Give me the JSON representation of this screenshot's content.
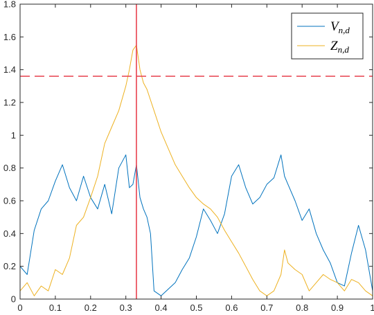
{
  "chart_data": {
    "type": "line",
    "xlim": [
      0,
      1
    ],
    "ylim": [
      0,
      1.8
    ],
    "xticks": [
      "0",
      "0.1",
      "0.2",
      "0.3",
      "0.4",
      "0.5",
      "0.6",
      "0.7",
      "0.8",
      "0.9",
      "1"
    ],
    "yticks": [
      "0",
      "0.2",
      "0.4",
      "0.6",
      "0.8",
      "1",
      "1.2",
      "1.4",
      "1.6",
      "1.8"
    ],
    "legend_position": "top-right",
    "grid": false,
    "series": [
      {
        "name": "V_{n,d}",
        "legend_main": "V",
        "legend_sub": "n,d",
        "color": "#0072BD",
        "x": [
          0,
          0.02,
          0.04,
          0.06,
          0.08,
          0.1,
          0.12,
          0.14,
          0.16,
          0.18,
          0.2,
          0.22,
          0.24,
          0.26,
          0.28,
          0.3,
          0.31,
          0.32,
          0.33,
          0.34,
          0.35,
          0.36,
          0.37,
          0.38,
          0.4,
          0.42,
          0.44,
          0.46,
          0.48,
          0.5,
          0.52,
          0.54,
          0.56,
          0.58,
          0.6,
          0.62,
          0.64,
          0.66,
          0.68,
          0.7,
          0.72,
          0.74,
          0.75,
          0.76,
          0.78,
          0.8,
          0.82,
          0.84,
          0.86,
          0.88,
          0.9,
          0.92,
          0.94,
          0.96,
          0.98,
          1.0
        ],
        "y": [
          0.2,
          0.15,
          0.42,
          0.55,
          0.6,
          0.72,
          0.82,
          0.68,
          0.6,
          0.75,
          0.62,
          0.55,
          0.7,
          0.52,
          0.8,
          0.88,
          0.68,
          0.7,
          0.82,
          0.62,
          0.55,
          0.5,
          0.4,
          0.05,
          0.02,
          0.06,
          0.1,
          0.18,
          0.25,
          0.38,
          0.55,
          0.48,
          0.4,
          0.52,
          0.75,
          0.82,
          0.68,
          0.58,
          0.62,
          0.7,
          0.74,
          0.88,
          0.75,
          0.7,
          0.6,
          0.48,
          0.55,
          0.4,
          0.3,
          0.22,
          0.1,
          0.08,
          0.28,
          0.45,
          0.3,
          0.05
        ]
      },
      {
        "name": "Z_{n,d}",
        "legend_main": "Z",
        "legend_sub": "n,d",
        "color": "#EDB120",
        "x": [
          0,
          0.02,
          0.04,
          0.06,
          0.08,
          0.1,
          0.12,
          0.14,
          0.16,
          0.18,
          0.2,
          0.22,
          0.24,
          0.26,
          0.28,
          0.3,
          0.31,
          0.32,
          0.33,
          0.34,
          0.35,
          0.36,
          0.38,
          0.4,
          0.42,
          0.44,
          0.46,
          0.48,
          0.5,
          0.52,
          0.54,
          0.56,
          0.58,
          0.6,
          0.62,
          0.64,
          0.66,
          0.68,
          0.7,
          0.72,
          0.74,
          0.75,
          0.76,
          0.78,
          0.8,
          0.82,
          0.84,
          0.86,
          0.88,
          0.9,
          0.92,
          0.94,
          0.96,
          0.98,
          1.0
        ],
        "y": [
          0.05,
          0.1,
          0.02,
          0.08,
          0.05,
          0.18,
          0.15,
          0.25,
          0.45,
          0.5,
          0.62,
          0.75,
          0.95,
          1.05,
          1.15,
          1.3,
          1.4,
          1.52,
          1.55,
          1.4,
          1.32,
          1.28,
          1.15,
          1.02,
          0.92,
          0.82,
          0.75,
          0.68,
          0.62,
          0.58,
          0.55,
          0.5,
          0.42,
          0.35,
          0.28,
          0.2,
          0.12,
          0.05,
          0.02,
          0.05,
          0.15,
          0.3,
          0.22,
          0.18,
          0.15,
          0.05,
          0.1,
          0.15,
          0.12,
          0.1,
          0.05,
          0.12,
          0.1,
          0.05,
          0.02
        ]
      }
    ],
    "reference_lines": [
      {
        "orientation": "vertical",
        "value": 0.33,
        "color": "#E8414E",
        "dash": "solid"
      },
      {
        "orientation": "horizontal",
        "value": 1.36,
        "color": "#E8414E",
        "dash": "dashed"
      }
    ]
  }
}
